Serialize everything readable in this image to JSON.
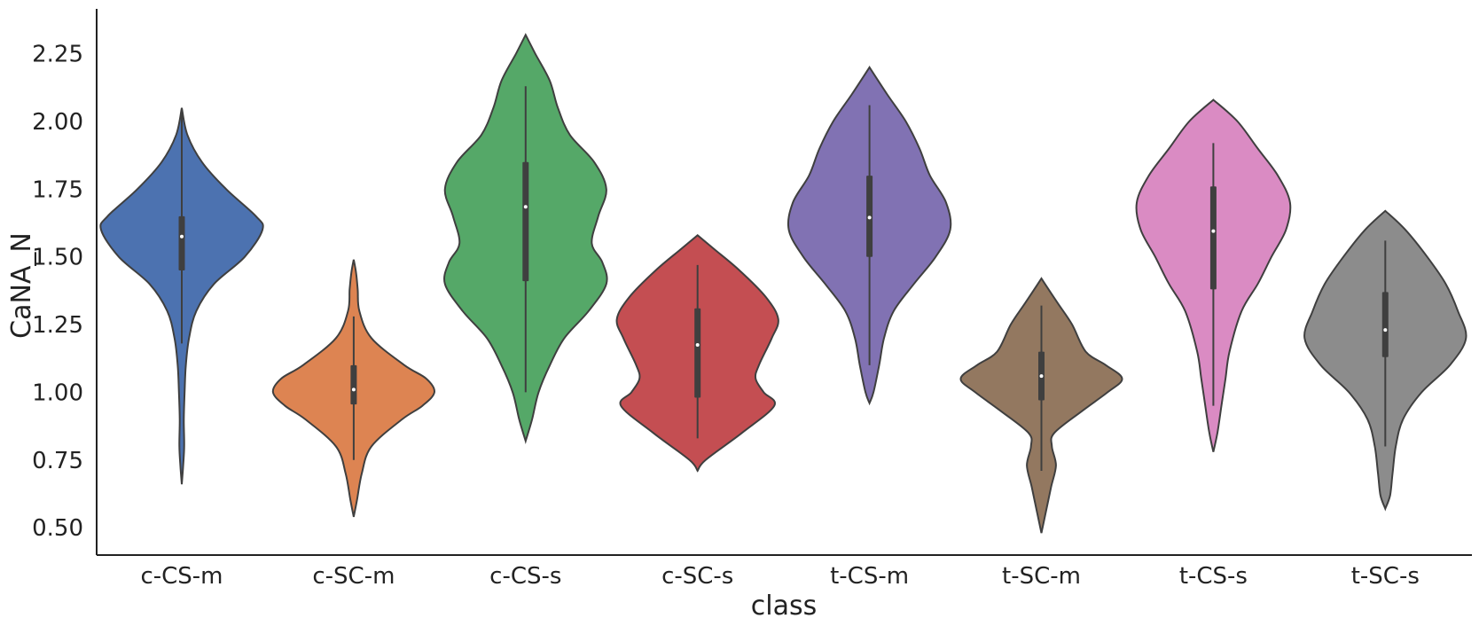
{
  "chart_data": {
    "type": "violin",
    "xlabel": "class",
    "ylabel": "CaNA_N",
    "ylim": [
      0.39,
      2.4
    ],
    "yticks": [
      0.5,
      0.75,
      1.0,
      1.25,
      1.5,
      1.75,
      2.0,
      2.25
    ],
    "ytick_labels": [
      "0.50",
      "0.75",
      "1.00",
      "1.25",
      "1.50",
      "1.75",
      "2.00",
      "2.25"
    ],
    "grid": false,
    "categories": [
      "c-CS-m",
      "c-SC-m",
      "c-CS-s",
      "c-SC-s",
      "t-CS-m",
      "t-SC-m",
      "t-CS-s",
      "t-SC-s"
    ],
    "violins": [
      {
        "label": "c-CS-m",
        "color": "#4c72b0",
        "min": 0.66,
        "q1": 1.45,
        "median": 1.575,
        "q3": 1.65,
        "max": 2.05,
        "whisker_low": 1.18,
        "whisker_high": 2.04,
        "profile": [
          [
            0.66,
            0.0
          ],
          [
            0.72,
            0.015
          ],
          [
            0.8,
            0.03
          ],
          [
            0.9,
            0.025
          ],
          [
            1.0,
            0.035
          ],
          [
            1.1,
            0.05
          ],
          [
            1.2,
            0.09
          ],
          [
            1.3,
            0.18
          ],
          [
            1.4,
            0.4
          ],
          [
            1.5,
            0.78
          ],
          [
            1.6,
            1.0
          ],
          [
            1.65,
            0.92
          ],
          [
            1.75,
            0.55
          ],
          [
            1.85,
            0.25
          ],
          [
            1.95,
            0.07
          ],
          [
            2.05,
            0.0
          ]
        ]
      },
      {
        "label": "c-SC-m",
        "color": "#dd8452",
        "min": 0.54,
        "q1": 0.955,
        "median": 1.01,
        "q3": 1.1,
        "max": 1.49,
        "whisker_low": 0.75,
        "whisker_high": 1.28,
        "profile": [
          [
            0.54,
            0.0
          ],
          [
            0.6,
            0.04
          ],
          [
            0.7,
            0.1
          ],
          [
            0.8,
            0.22
          ],
          [
            0.9,
            0.6
          ],
          [
            0.95,
            0.85
          ],
          [
            1.0,
            1.0
          ],
          [
            1.05,
            0.9
          ],
          [
            1.1,
            0.63
          ],
          [
            1.2,
            0.22
          ],
          [
            1.3,
            0.07
          ],
          [
            1.38,
            0.05
          ],
          [
            1.44,
            0.03
          ],
          [
            1.49,
            0.0
          ]
        ]
      },
      {
        "label": "c-CS-s",
        "color": "#55a868",
        "min": 0.82,
        "q1": 1.41,
        "median": 1.685,
        "q3": 1.85,
        "max": 2.32,
        "whisker_low": 1.0,
        "whisker_high": 2.13,
        "profile": [
          [
            0.82,
            0.0
          ],
          [
            0.9,
            0.08
          ],
          [
            1.0,
            0.16
          ],
          [
            1.1,
            0.3
          ],
          [
            1.2,
            0.48
          ],
          [
            1.3,
            0.78
          ],
          [
            1.4,
            1.0
          ],
          [
            1.48,
            0.95
          ],
          [
            1.55,
            0.82
          ],
          [
            1.65,
            0.9
          ],
          [
            1.75,
            1.0
          ],
          [
            1.85,
            0.85
          ],
          [
            1.95,
            0.55
          ],
          [
            2.05,
            0.4
          ],
          [
            2.15,
            0.3
          ],
          [
            2.25,
            0.12
          ],
          [
            2.32,
            0.0
          ]
        ]
      },
      {
        "label": "c-SC-s",
        "color": "#c44e52",
        "min": 0.71,
        "q1": 0.98,
        "median": 1.175,
        "q3": 1.31,
        "max": 1.58,
        "whisker_low": 0.83,
        "whisker_high": 1.47,
        "profile": [
          [
            0.71,
            0.0
          ],
          [
            0.75,
            0.1
          ],
          [
            0.85,
            0.55
          ],
          [
            0.95,
            0.95
          ],
          [
            1.0,
            0.82
          ],
          [
            1.05,
            0.72
          ],
          [
            1.1,
            0.76
          ],
          [
            1.2,
            0.92
          ],
          [
            1.27,
            1.0
          ],
          [
            1.35,
            0.85
          ],
          [
            1.45,
            0.52
          ],
          [
            1.53,
            0.2
          ],
          [
            1.58,
            0.0
          ]
        ]
      },
      {
        "label": "t-CS-m",
        "color": "#8172b3",
        "min": 0.96,
        "q1": 1.5,
        "median": 1.645,
        "q3": 1.8,
        "max": 2.2,
        "whisker_low": 1.1,
        "whisker_high": 2.06,
        "profile": [
          [
            0.96,
            0.0
          ],
          [
            1.0,
            0.05
          ],
          [
            1.1,
            0.12
          ],
          [
            1.2,
            0.18
          ],
          [
            1.3,
            0.3
          ],
          [
            1.4,
            0.55
          ],
          [
            1.5,
            0.82
          ],
          [
            1.6,
            1.0
          ],
          [
            1.7,
            0.95
          ],
          [
            1.8,
            0.75
          ],
          [
            1.9,
            0.62
          ],
          [
            2.0,
            0.45
          ],
          [
            2.1,
            0.22
          ],
          [
            2.2,
            0.0
          ]
        ]
      },
      {
        "label": "t-SC-m",
        "color": "#937860",
        "min": 0.48,
        "q1": 0.97,
        "median": 1.06,
        "q3": 1.15,
        "max": 1.42,
        "whisker_low": 0.71,
        "whisker_high": 1.32,
        "profile": [
          [
            0.48,
            0.0
          ],
          [
            0.55,
            0.05
          ],
          [
            0.65,
            0.12
          ],
          [
            0.73,
            0.18
          ],
          [
            0.8,
            0.13
          ],
          [
            0.85,
            0.16
          ],
          [
            0.93,
            0.5
          ],
          [
            1.0,
            0.82
          ],
          [
            1.05,
            1.0
          ],
          [
            1.1,
            0.8
          ],
          [
            1.15,
            0.55
          ],
          [
            1.25,
            0.38
          ],
          [
            1.33,
            0.2
          ],
          [
            1.42,
            0.0
          ]
        ]
      },
      {
        "label": "t-CS-s",
        "color": "#da8bc3",
        "min": 0.78,
        "q1": 1.38,
        "median": 1.595,
        "q3": 1.76,
        "max": 2.08,
        "whisker_low": 0.95,
        "whisker_high": 1.92,
        "profile": [
          [
            0.78,
            0.0
          ],
          [
            0.85,
            0.05
          ],
          [
            0.95,
            0.1
          ],
          [
            1.05,
            0.15
          ],
          [
            1.15,
            0.2
          ],
          [
            1.3,
            0.35
          ],
          [
            1.4,
            0.55
          ],
          [
            1.5,
            0.72
          ],
          [
            1.6,
            0.9
          ],
          [
            1.7,
            0.95
          ],
          [
            1.8,
            0.8
          ],
          [
            1.9,
            0.55
          ],
          [
            2.0,
            0.3
          ],
          [
            2.08,
            0.0
          ]
        ]
      },
      {
        "label": "t-SC-s",
        "color": "#8c8c8c",
        "min": 0.57,
        "q1": 1.13,
        "median": 1.23,
        "q3": 1.37,
        "max": 1.67,
        "whisker_low": 0.8,
        "whisker_high": 1.56,
        "profile": [
          [
            0.57,
            0.0
          ],
          [
            0.62,
            0.06
          ],
          [
            0.7,
            0.09
          ],
          [
            0.8,
            0.13
          ],
          [
            0.9,
            0.22
          ],
          [
            1.0,
            0.45
          ],
          [
            1.1,
            0.8
          ],
          [
            1.2,
            1.0
          ],
          [
            1.3,
            0.9
          ],
          [
            1.4,
            0.75
          ],
          [
            1.5,
            0.52
          ],
          [
            1.6,
            0.25
          ],
          [
            1.67,
            0.0
          ]
        ]
      }
    ]
  }
}
